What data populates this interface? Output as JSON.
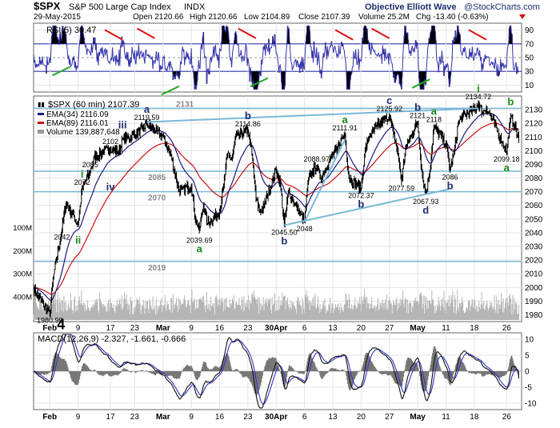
{
  "header": {
    "ticker": "$SPX",
    "name": "S&P 500 Large Cap Index",
    "exchange": "INDX",
    "date": "29-May-2015",
    "open": "Open 2120.66",
    "high": "High 2120.66",
    "low": "Low 2104.89",
    "close": "Close 2107.39",
    "volume": "Volume 25.2M",
    "change": "Chg -13.40 (-0.63%)",
    "author": "Objective Elliott Wave",
    "watermark": "@StockCharts.com"
  },
  "colors": {
    "price": "#000000",
    "ema34": "#1a1a80",
    "ema89": "#cc1111",
    "rsi": "#3333aa",
    "macd": "#111111",
    "signal": "#3333cc",
    "histogram": "#777777",
    "support": "#7ab8d8",
    "wave_label": "#1e2e6e",
    "wave_label_green": "#1a8a1a",
    "trend_red": "#dd1111",
    "trend_green": "#22aa22",
    "panel_bg": "#ffffff"
  },
  "rsi_panel": {
    "title": "RSI(5) 30.47",
    "ticks": [
      "90",
      "70",
      "50",
      "30",
      "10"
    ]
  },
  "price_panel": {
    "title": "$SPX (60 min) 2107.39",
    "legend": [
      {
        "label": "EMA(34) 2116.09",
        "swatch": "#1a1a80"
      },
      {
        "label": "EMA(89) 2116.01",
        "swatch": "#cc1111"
      },
      {
        "label": "Volume 139,887,648",
        "swatch": "#999999"
      }
    ],
    "support_labels": [
      "2131",
      "2085",
      "2070",
      "2019"
    ],
    "volume_ticks": [
      "400M",
      "300M",
      "200M",
      "100M"
    ],
    "price_labels": [
      "1980.90",
      "2042",
      "2072",
      "2085",
      "2102",
      "2119.59",
      "2039.69",
      "2114.86",
      "2045.50",
      "2048",
      "2088.97",
      "2111.91",
      "2072.37",
      "2125.92",
      "2121",
      "2118",
      "2077.59",
      "2067.93",
      "2086",
      "2134.72",
      "2099.18"
    ],
    "wave_labels": [
      "4",
      "i",
      "ii",
      "iii",
      "iv",
      "a",
      "a",
      "b",
      "b",
      "a",
      "b",
      "c",
      "b",
      "d",
      "a",
      "b",
      "i",
      "b",
      "a"
    ]
  },
  "macd_panel": {
    "title": "MACD(12,26,9) -2.327, -1.661, -0.666"
  },
  "x_axis": {
    "labels": [
      "Feb",
      "9",
      "17",
      "23",
      "Mar",
      "9",
      "16",
      "23",
      "30Apr",
      "6",
      "13",
      "20",
      "27",
      "May",
      "11",
      "18",
      "26"
    ]
  },
  "chart_data": [
    {
      "type": "line",
      "panel": "rsi",
      "title": "RSI(5) 30.47",
      "indicator": "RSI(5)",
      "last_value": 30.47,
      "ylim": [
        0,
        100
      ],
      "y_ticks": [
        10,
        30,
        50,
        70,
        90
      ],
      "overbought": 70,
      "oversold": 30
    },
    {
      "type": "line",
      "panel": "price",
      "title": "$SPX (60 min) 2107.39",
      "ylim": [
        1975,
        2140
      ],
      "y_ticks": [
        1980,
        1990,
        2000,
        2010,
        2020,
        2030,
        2040,
        2050,
        2060,
        2070,
        2080,
        2090,
        2100,
        2110,
        2120,
        2130
      ],
      "x_range": [
        "2015-01-29",
        "2015-05-29"
      ],
      "x_labels": [
        "Feb",
        "9",
        "17",
        "23",
        "Mar",
        "9",
        "16",
        "23",
        "30Apr",
        "6",
        "13",
        "20",
        "27",
        "May",
        "11",
        "18",
        "26"
      ],
      "series": [
        {
          "name": "$SPX (60 min)",
          "last": 2107.39
        },
        {
          "name": "EMA(34)",
          "last": 2116.09
        },
        {
          "name": "EMA(89)",
          "last": 2116.01
        },
        {
          "name": "Volume",
          "last": 139887648
        }
      ],
      "price_path": [
        [
          "2015-01-29",
          2000
        ],
        [
          "2015-01-30",
          1994
        ],
        [
          "2015-02-02",
          1981
        ],
        [
          "2015-02-03",
          2010
        ],
        [
          "2015-02-05",
          2042
        ],
        [
          "2015-02-06",
          2062
        ],
        [
          "2015-02-09",
          2046
        ],
        [
          "2015-02-10",
          2072
        ],
        [
          "2015-02-12",
          2085
        ],
        [
          "2015-02-13",
          2095
        ],
        [
          "2015-02-17",
          2102
        ],
        [
          "2015-02-19",
          2099
        ],
        [
          "2015-02-20",
          2108
        ],
        [
          "2015-02-23",
          2112
        ],
        [
          "2015-02-25",
          2116
        ],
        [
          "2015-02-26",
          2119.59
        ],
        [
          "2015-03-02",
          2110
        ],
        [
          "2015-03-04",
          2096
        ],
        [
          "2015-03-06",
          2070
        ],
        [
          "2015-03-09",
          2075
        ],
        [
          "2015-03-10",
          2050
        ],
        [
          "2015-03-11",
          2042
        ],
        [
          "2015-03-12",
          2060
        ],
        [
          "2015-03-13",
          2047
        ],
        [
          "2015-03-16",
          2055
        ],
        [
          "2015-03-17",
          2075
        ],
        [
          "2015-03-18",
          2098
        ],
        [
          "2015-03-19",
          2094
        ],
        [
          "2015-03-20",
          2110
        ],
        [
          "2015-03-23",
          2114.86
        ],
        [
          "2015-03-24",
          2098
        ],
        [
          "2015-03-25",
          2065
        ],
        [
          "2015-03-26",
          2055
        ],
        [
          "2015-03-27",
          2060
        ],
        [
          "2015-03-30",
          2086
        ],
        [
          "2015-03-31",
          2076
        ],
        [
          "2015-04-01",
          2045.5
        ],
        [
          "2015-04-02",
          2070
        ],
        [
          "2015-04-06",
          2048
        ],
        [
          "2015-04-07",
          2080
        ],
        [
          "2015-04-08",
          2085
        ],
        [
          "2015-04-09",
          2088.97
        ],
        [
          "2015-04-10",
          2080
        ],
        [
          "2015-04-13",
          2097
        ],
        [
          "2015-04-14",
          2100
        ],
        [
          "2015-04-15",
          2108
        ],
        [
          "2015-04-16",
          2111.91
        ],
        [
          "2015-04-17",
          2080
        ],
        [
          "2015-04-20",
          2072.37
        ],
        [
          "2015-04-21",
          2100
        ],
        [
          "2015-04-22",
          2110
        ],
        [
          "2015-04-24",
          2118
        ],
        [
          "2015-04-27",
          2125.92
        ],
        [
          "2015-04-28",
          2112
        ],
        [
          "2015-04-29",
          2100
        ],
        [
          "2015-04-30",
          2077.59
        ],
        [
          "2015-05-01",
          2102
        ],
        [
          "2015-05-04",
          2121
        ],
        [
          "2015-05-05",
          2085
        ],
        [
          "2015-05-06",
          2067.93
        ],
        [
          "2015-05-07",
          2085
        ],
        [
          "2015-05-08",
          2118
        ],
        [
          "2015-05-11",
          2105
        ],
        [
          "2015-05-12",
          2086
        ],
        [
          "2015-05-13",
          2098
        ],
        [
          "2015-05-14",
          2120
        ],
        [
          "2015-05-15",
          2125
        ],
        [
          "2015-05-18",
          2130
        ],
        [
          "2015-05-19",
          2134.72
        ],
        [
          "2015-05-20",
          2128
        ],
        [
          "2015-05-21",
          2131
        ],
        [
          "2015-05-22",
          2126
        ],
        [
          "2015-05-26",
          2099.18
        ],
        [
          "2015-05-27",
          2125
        ],
        [
          "2015-05-28",
          2118
        ],
        [
          "2015-05-29",
          2107.39
        ]
      ],
      "horizontal_lines": [
        2131,
        2085,
        2070,
        2019
      ],
      "trendlines": [
        {
          "from": [
            "2015-02-26",
            2121
          ],
          "to": [
            "2015-05-19",
            2131
          ]
        },
        {
          "from": [
            "2015-04-01",
            2045.5
          ],
          "to": [
            "2015-05-12",
            2072
          ]
        },
        {
          "from": [
            "2015-04-06",
            2048
          ],
          "to": [
            "2015-04-16",
            2108
          ]
        }
      ],
      "annotations": [
        {
          "text": "1980.90",
          "x": "2015-02-02",
          "y": 1981
        },
        {
          "text": "2042",
          "x": "2015-02-05",
          "y": 2042
        },
        {
          "text": "2072",
          "x": "2015-02-10",
          "y": 2072
        },
        {
          "text": "2085",
          "x": "2015-02-12",
          "y": 2085
        },
        {
          "text": "2102",
          "x": "2015-02-17",
          "y": 2102
        },
        {
          "text": "2119.59",
          "x": "2015-02-26",
          "y": 2119.59
        },
        {
          "text": "2039.69",
          "x": "2015-03-11",
          "y": 2039.69
        },
        {
          "text": "2114.86",
          "x": "2015-03-23",
          "y": 2114.86
        },
        {
          "text": "2045.50",
          "x": "2015-04-01",
          "y": 2045.5
        },
        {
          "text": "2048",
          "x": "2015-04-06",
          "y": 2048
        },
        {
          "text": "2088.97",
          "x": "2015-04-09",
          "y": 2088.97
        },
        {
          "text": "2111.91",
          "x": "2015-04-16",
          "y": 2111.91
        },
        {
          "text": "2072.37",
          "x": "2015-04-20",
          "y": 2072.37
        },
        {
          "text": "2125.92",
          "x": "2015-04-27",
          "y": 2125.92
        },
        {
          "text": "2121",
          "x": "2015-05-04",
          "y": 2121
        },
        {
          "text": "2118",
          "x": "2015-05-08",
          "y": 2118
        },
        {
          "text": "2077.59",
          "x": "2015-04-30",
          "y": 2077.59
        },
        {
          "text": "2067.93",
          "x": "2015-05-06",
          "y": 2067.93
        },
        {
          "text": "2086",
          "x": "2015-05-12",
          "y": 2086
        },
        {
          "text": "2134.72",
          "x": "2015-05-19",
          "y": 2134.72
        },
        {
          "text": "2099.18",
          "x": "2015-05-26",
          "y": 2099.18
        }
      ],
      "wave_labels": [
        {
          "text": "4",
          "x": "2015-02-02",
          "y": 1981
        },
        {
          "text": "i",
          "x": "2015-02-10",
          "y": 2072
        },
        {
          "text": "ii",
          "x": "2015-02-09",
          "y": 2046
        },
        {
          "text": "iii",
          "x": "2015-02-20",
          "y": 2108
        },
        {
          "text": "iv",
          "x": "2015-02-17",
          "y": 2085
        },
        {
          "text": "a",
          "x": "2015-02-26",
          "y": 2119.59
        },
        {
          "text": "a",
          "x": "2015-03-11",
          "y": 2039.69
        },
        {
          "text": "b",
          "x": "2015-03-23",
          "y": 2114.86
        },
        {
          "text": "b",
          "x": "2015-04-01",
          "y": 2045.5
        },
        {
          "text": "a",
          "x": "2015-04-16",
          "y": 2111.91
        },
        {
          "text": "b",
          "x": "2015-04-20",
          "y": 2072.37
        },
        {
          "text": "c",
          "x": "2015-04-27",
          "y": 2125.92
        },
        {
          "text": "b",
          "x": "2015-05-04",
          "y": 2121
        },
        {
          "text": "d",
          "x": "2015-05-06",
          "y": 2067.93
        },
        {
          "text": "a",
          "x": "2015-05-08",
          "y": 2118
        },
        {
          "text": "b",
          "x": "2015-05-12",
          "y": 2086
        },
        {
          "text": "i",
          "x": "2015-05-19",
          "y": 2134.72
        },
        {
          "text": "b",
          "x": "2015-05-27",
          "y": 2125
        },
        {
          "text": "a",
          "x": "2015-05-26",
          "y": 2099.18
        }
      ],
      "volume_axis": {
        "ylim": [
          0,
          450000000
        ],
        "ticks": [
          100000000,
          200000000,
          300000000,
          400000000
        ]
      }
    },
    {
      "type": "line",
      "panel": "macd",
      "title": "MACD(12,26,9) -2.327, -1.661, -0.666",
      "macd": -2.327,
      "signal": -1.661,
      "histogram": -0.666,
      "ylim": [
        -12,
        12
      ],
      "y_ticks": [
        10,
        5,
        0,
        -5,
        -10
      ]
    }
  ]
}
